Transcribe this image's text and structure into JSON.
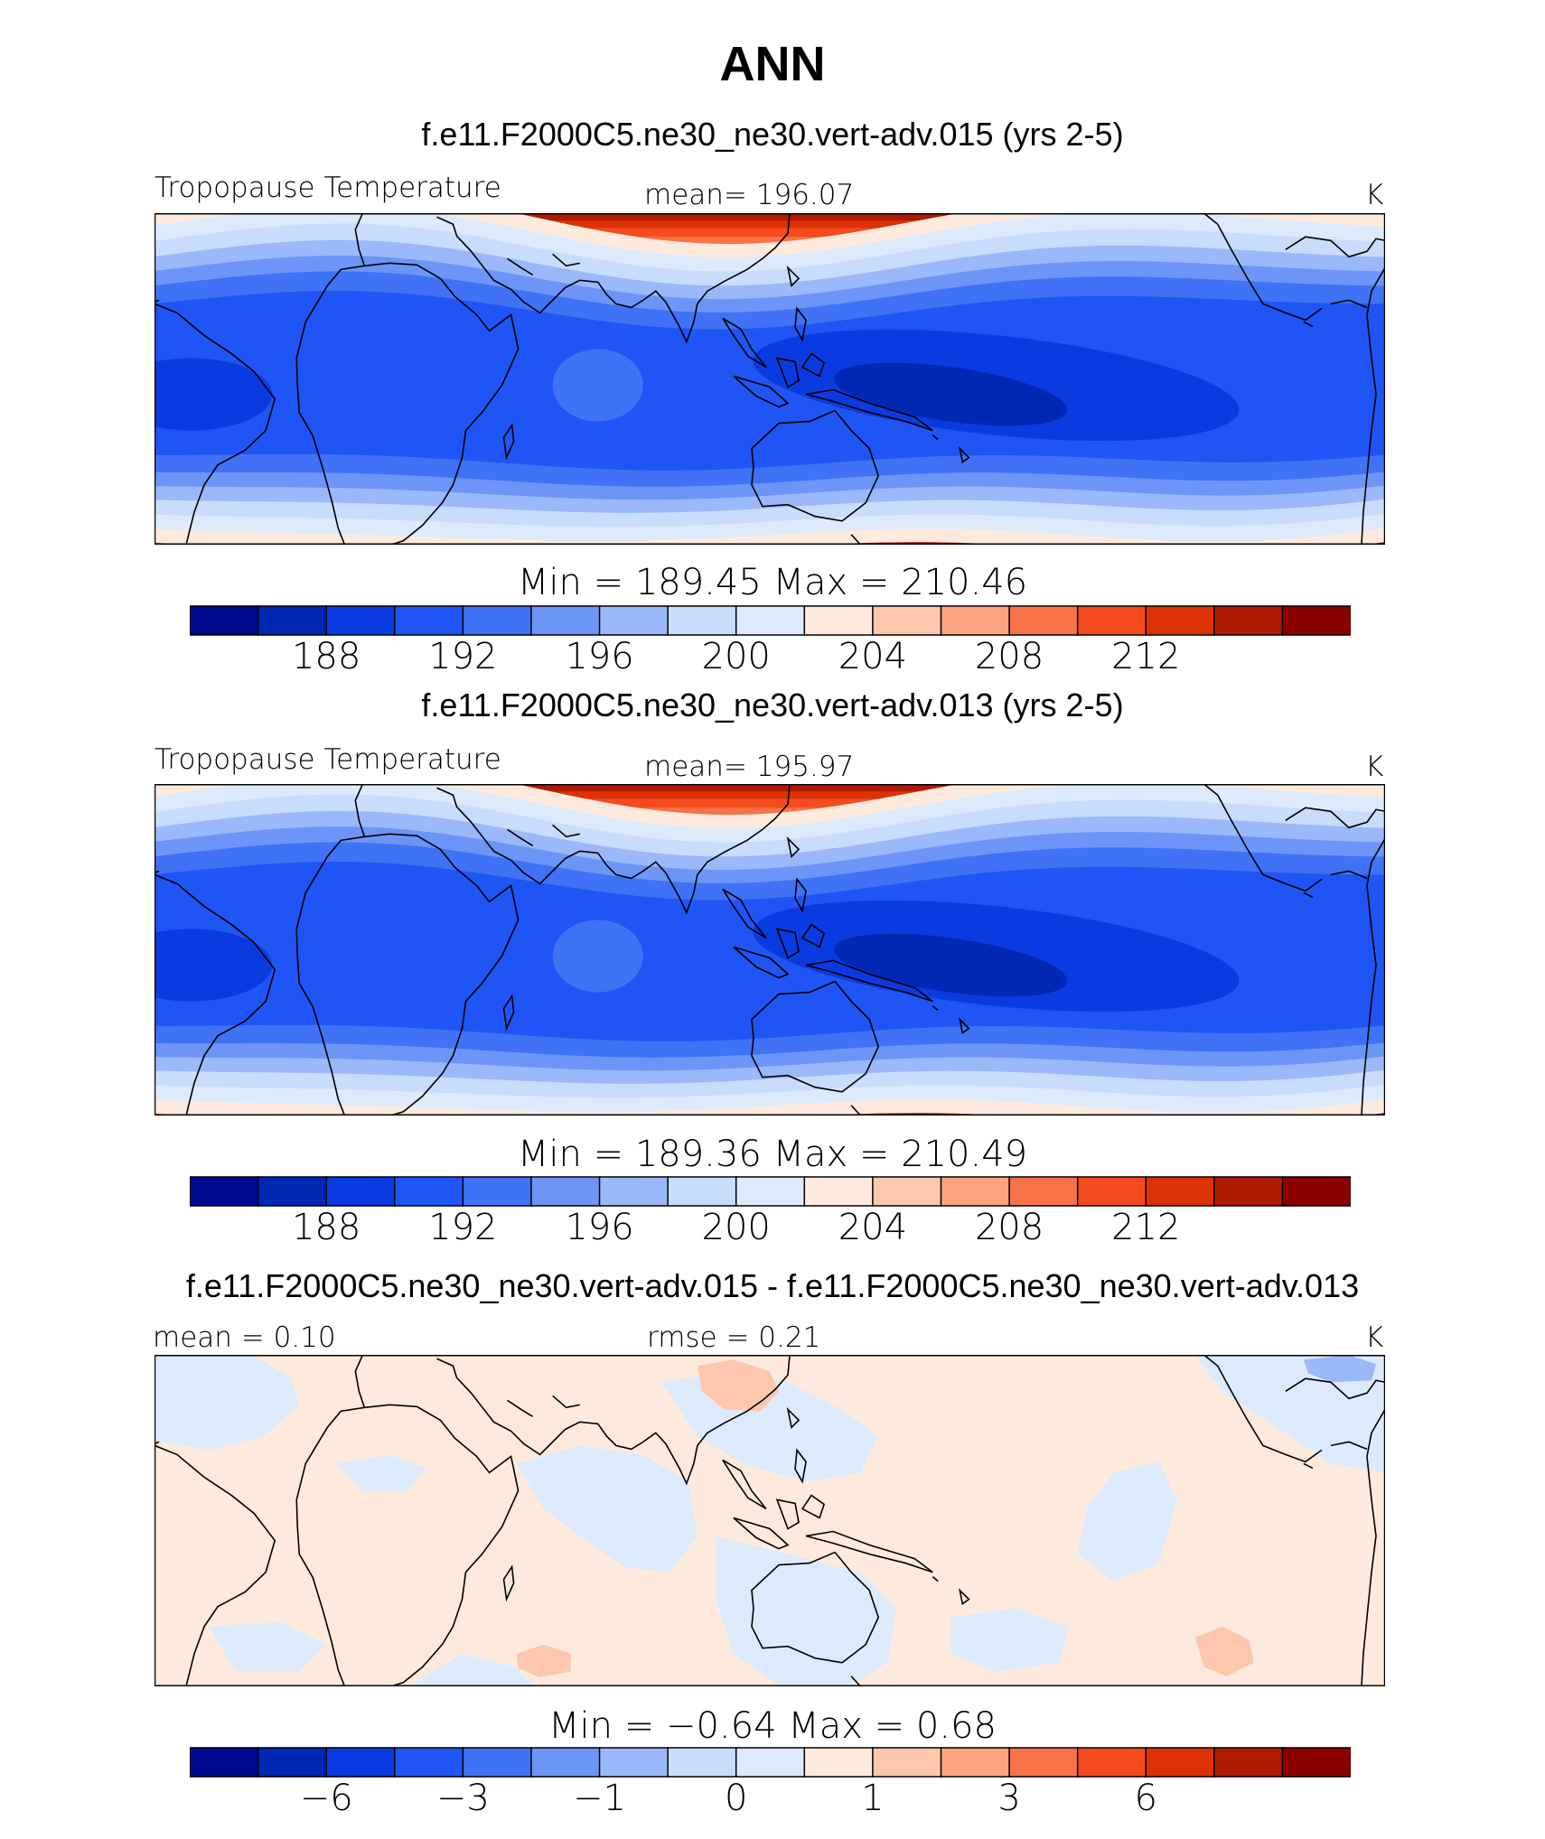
{
  "figure_title": "ANN",
  "panels": [
    {
      "title": "f.e11.F2000C5.ne30_ne30.vert-adv.015 (yrs 2-5)",
      "left_label": "Tropopause Temperature",
      "center_label": "mean=  196.07",
      "units": "K",
      "stats": "Min  =  189.45  Max  =  210.46",
      "kind": "abs"
    },
    {
      "title": "f.e11.F2000C5.ne30_ne30.vert-adv.013 (yrs 2-5)",
      "left_label": "Tropopause Temperature",
      "center_label": "mean=  195.97",
      "units": "K",
      "stats": "Min  =  189.36  Max  =  210.49",
      "kind": "abs"
    },
    {
      "title": "f.e11.F2000C5.ne30_ne30.vert-adv.015 - f.e11.F2000C5.ne30_ne30.vert-adv.013",
      "left_label": "mean =    0.10",
      "center_label": "rmse =    0.21",
      "units": "K",
      "stats": "Min  =    −0.64  Max  =    0.68",
      "kind": "diff"
    }
  ],
  "colorbar": {
    "colors": [
      "#000a8f",
      "#0028b4",
      "#0a3be0",
      "#1f55f5",
      "#3f72f5",
      "#6c95f7",
      "#9ab8fa",
      "#c8dcfb",
      "#ddeafc",
      "#feeadd",
      "#fdc7ad",
      "#fca480",
      "#f87348",
      "#f54b1e",
      "#dc3205",
      "#b01b04",
      "#8a0000"
    ],
    "abs_ticks": [
      "188",
      "192",
      "196",
      "200",
      "204",
      "208",
      "212"
    ],
    "diff_ticks": [
      "−6",
      "−3",
      "−1",
      "0",
      "1",
      "3",
      "6"
    ]
  }
}
